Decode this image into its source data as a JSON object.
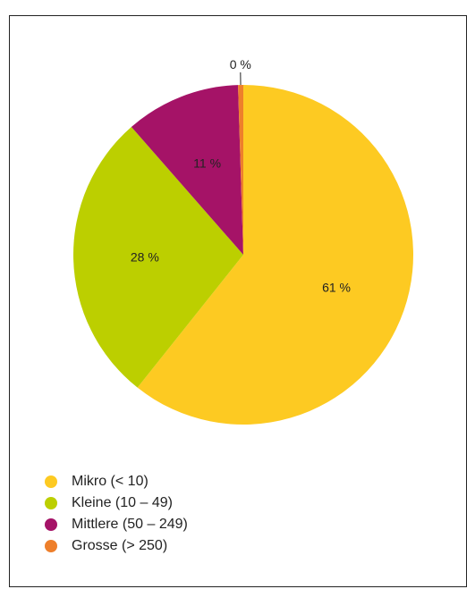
{
  "chart_data": {
    "type": "pie",
    "categories": [
      "Mikro (< 10)",
      "Kleine (10 – 49)",
      "Mittlere (50 – 249)",
      "Grosse (> 250)"
    ],
    "values": [
      61,
      28,
      11,
      0.5
    ],
    "value_labels": [
      "61 %",
      "28 %",
      "11 %",
      "0 %"
    ],
    "colors": [
      "#fdca22",
      "#bccf00",
      "#a51367",
      "#ee7f2b"
    ],
    "legend_position": "bottom-left",
    "start_angle": "12 o'clock",
    "direction": "clockwise"
  }
}
